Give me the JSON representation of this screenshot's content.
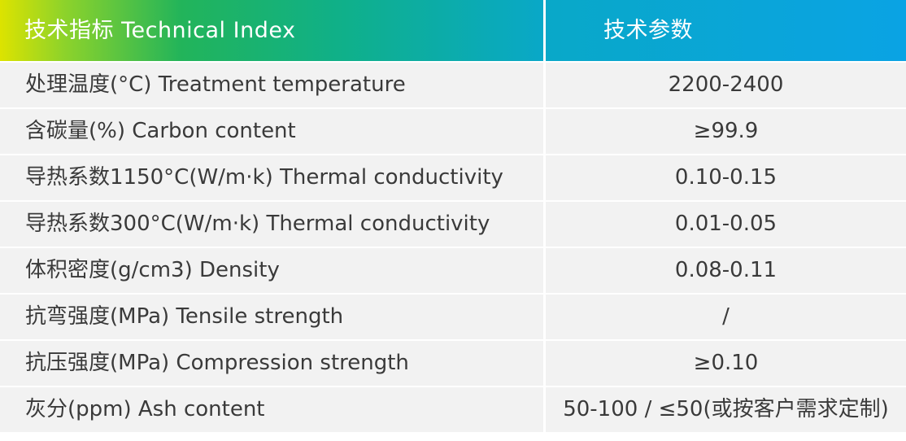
{
  "header": {
    "left": "技术指标 Technical Index",
    "right": "技术参数"
  },
  "rows": [
    {
      "label": "处理温度(°C) Treatment temperature",
      "value": "2200-2400"
    },
    {
      "label": "含碳量(%) Carbon content",
      "value": "≥99.9"
    },
    {
      "label": "导热系数1150°C(W/m·k) Thermal conductivity",
      "value": "0.10-0.15"
    },
    {
      "label": "导热系数300°C(W/m·k) Thermal conductivity",
      "value": "0.01-0.05"
    },
    {
      "label": "体积密度(g/cm3) Density",
      "value": "0.08-0.11"
    },
    {
      "label": "抗弯强度(MPa) Tensile strength",
      "value": "/"
    },
    {
      "label": "抗压强度(MPa) Compression strength",
      "value": "≥0.10"
    },
    {
      "label": "灰分(ppm) Ash content",
      "value": "50-100 / ≤50(或按客户需求定制)"
    }
  ]
}
